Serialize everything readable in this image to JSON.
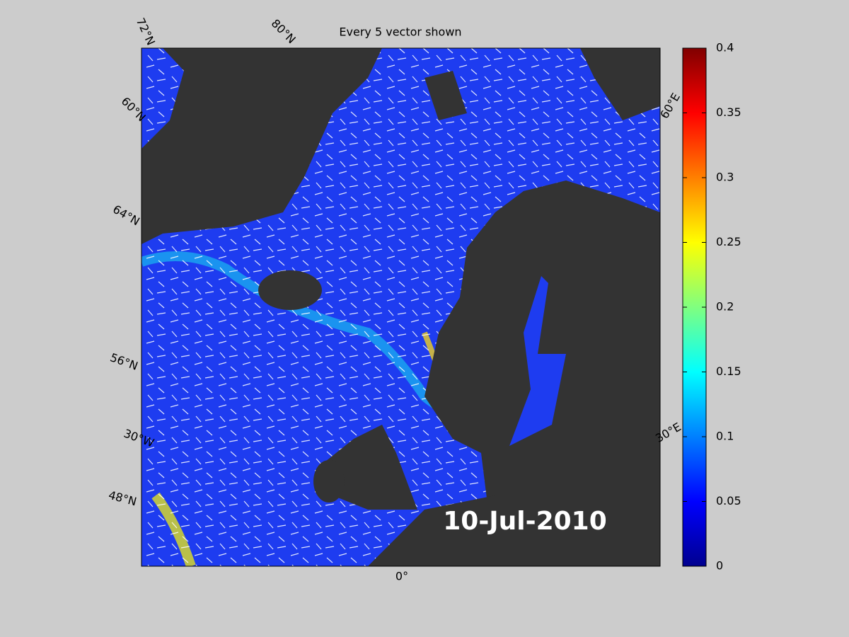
{
  "title": "Every 5 vector shown",
  "date_label": "10-Jul-2010",
  "grid_labels": [
    "72°N",
    "80°N",
    "60°N",
    "64°N",
    "56°N",
    "30°W",
    "48°N",
    "0°",
    "60°E",
    "30°E"
  ],
  "colorbar": {
    "lim": [
      0,
      0.4
    ],
    "ticks": [
      0,
      0.05,
      0.1,
      0.15,
      0.2,
      0.25,
      0.3,
      0.35,
      0.4
    ]
  }
}
